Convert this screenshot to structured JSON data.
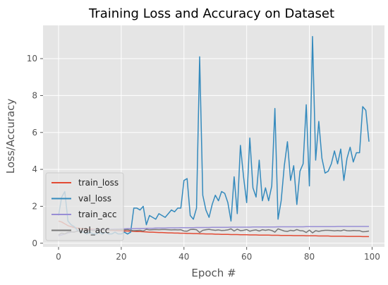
{
  "chart_data": {
    "type": "line",
    "title": "Training Loss and Accuracy on Dataset",
    "xlabel": "Epoch #",
    "ylabel": "Loss/Accuracy",
    "xlim": [
      -4.95,
      103.95
    ],
    "ylim": [
      -0.2,
      11.8
    ],
    "xticks": [
      0,
      20,
      40,
      60,
      80,
      100
    ],
    "yticks": [
      0,
      2,
      4,
      6,
      8,
      10
    ],
    "grid": true,
    "legend_position": "lower left",
    "series": [
      {
        "name": "train_loss",
        "color": "#e24a33",
        "values": [
          1.2,
          1.15,
          1.05,
          0.95,
          0.9,
          0.85,
          0.82,
          0.8,
          0.78,
          0.77,
          0.76,
          0.75,
          0.74,
          0.73,
          0.72,
          0.71,
          0.7,
          0.7,
          0.69,
          0.68,
          0.67,
          0.66,
          0.66,
          0.65,
          0.64,
          0.63,
          0.63,
          0.62,
          0.61,
          0.6,
          0.6,
          0.59,
          0.58,
          0.58,
          0.57,
          0.56,
          0.56,
          0.55,
          0.55,
          0.54,
          0.54,
          0.53,
          0.53,
          0.52,
          0.52,
          0.51,
          0.51,
          0.5,
          0.5,
          0.5,
          0.49,
          0.49,
          0.48,
          0.48,
          0.48,
          0.47,
          0.47,
          0.47,
          0.46,
          0.46,
          0.46,
          0.45,
          0.45,
          0.45,
          0.44,
          0.44,
          0.44,
          0.44,
          0.43,
          0.43,
          0.43,
          0.42,
          0.42,
          0.42,
          0.42,
          0.41,
          0.41,
          0.41,
          0.41,
          0.4,
          0.4,
          0.4,
          0.4,
          0.39,
          0.39,
          0.39,
          0.39,
          0.38,
          0.38,
          0.38,
          0.38,
          0.38,
          0.37,
          0.37,
          0.37,
          0.37,
          0.37,
          0.36,
          0.36,
          0.36
        ]
      },
      {
        "name": "val_loss",
        "color": "#348abd",
        "values": [
          1.5,
          2.5,
          2.8,
          1.2,
          1.0,
          0.9,
          0.7,
          0.6,
          0.6,
          0.5,
          0.6,
          0.5,
          0.5,
          0.6,
          0.5,
          0.6,
          0.5,
          0.5,
          0.6,
          0.5,
          0.5,
          0.6,
          0.5,
          0.6,
          1.9,
          1.9,
          1.8,
          2.0,
          1.0,
          1.5,
          1.4,
          1.3,
          1.6,
          1.5,
          1.4,
          1.6,
          1.8,
          1.7,
          1.9,
          1.9,
          3.4,
          3.5,
          1.5,
          1.3,
          1.9,
          10.1,
          2.6,
          1.8,
          1.4,
          2.1,
          2.6,
          2.3,
          2.8,
          2.7,
          2.2,
          1.2,
          3.6,
          1.6,
          5.3,
          3.6,
          2.2,
          5.7,
          3.0,
          2.5,
          4.5,
          2.3,
          3.0,
          2.3,
          3.1,
          7.3,
          1.3,
          2.3,
          4.2,
          5.5,
          3.4,
          4.2,
          2.1,
          3.9,
          4.3,
          7.5,
          3.1,
          11.2,
          4.5,
          6.6,
          4.6,
          3.8,
          3.9,
          4.3,
          5.0,
          4.3,
          5.1,
          3.4,
          4.6,
          5.2,
          4.4,
          4.9,
          4.9,
          7.4,
          7.2,
          5.5
        ]
      },
      {
        "name": "train_acc",
        "color": "#988ed5",
        "values": [
          0.4,
          0.45,
          0.5,
          0.55,
          0.6,
          0.62,
          0.65,
          0.67,
          0.68,
          0.7,
          0.71,
          0.72,
          0.73,
          0.74,
          0.75,
          0.75,
          0.76,
          0.76,
          0.77,
          0.77,
          0.78,
          0.78,
          0.79,
          0.79,
          0.79,
          0.8,
          0.8,
          0.8,
          0.81,
          0.81,
          0.81,
          0.82,
          0.82,
          0.82,
          0.82,
          0.83,
          0.83,
          0.83,
          0.83,
          0.84,
          0.84,
          0.84,
          0.84,
          0.84,
          0.85,
          0.85,
          0.85,
          0.85,
          0.85,
          0.86,
          0.86,
          0.86,
          0.86,
          0.86,
          0.86,
          0.87,
          0.87,
          0.87,
          0.87,
          0.87,
          0.87,
          0.87,
          0.88,
          0.88,
          0.88,
          0.88,
          0.88,
          0.88,
          0.88,
          0.88,
          0.89,
          0.89,
          0.89,
          0.89,
          0.89,
          0.89,
          0.89,
          0.89,
          0.89,
          0.9,
          0.9,
          0.9,
          0.9,
          0.9,
          0.9,
          0.9,
          0.9,
          0.9,
          0.9,
          0.91,
          0.91,
          0.91,
          0.91,
          0.91,
          0.91,
          0.91,
          0.91,
          0.91,
          0.91,
          0.91
        ]
      },
      {
        "name": "val_acc",
        "color": "#777777",
        "values": [
          0.45,
          0.55,
          0.5,
          0.6,
          0.62,
          0.6,
          0.65,
          0.66,
          0.68,
          0.65,
          0.7,
          0.68,
          0.72,
          0.7,
          0.71,
          0.72,
          0.7,
          0.73,
          0.72,
          0.74,
          0.73,
          0.72,
          0.74,
          0.7,
          0.68,
          0.69,
          0.7,
          0.66,
          0.75,
          0.72,
          0.73,
          0.74,
          0.73,
          0.74,
          0.74,
          0.73,
          0.72,
          0.73,
          0.72,
          0.73,
          0.66,
          0.65,
          0.74,
          0.75,
          0.73,
          0.58,
          0.7,
          0.73,
          0.75,
          0.72,
          0.7,
          0.72,
          0.69,
          0.7,
          0.72,
          0.78,
          0.66,
          0.76,
          0.68,
          0.7,
          0.74,
          0.65,
          0.7,
          0.72,
          0.66,
          0.73,
          0.7,
          0.73,
          0.69,
          0.6,
          0.78,
          0.72,
          0.66,
          0.64,
          0.7,
          0.67,
          0.74,
          0.68,
          0.67,
          0.58,
          0.71,
          0.56,
          0.68,
          0.64,
          0.68,
          0.7,
          0.7,
          0.69,
          0.67,
          0.69,
          0.67,
          0.72,
          0.68,
          0.67,
          0.69,
          0.68,
          0.68,
          0.62,
          0.63,
          0.66
        ]
      }
    ]
  }
}
